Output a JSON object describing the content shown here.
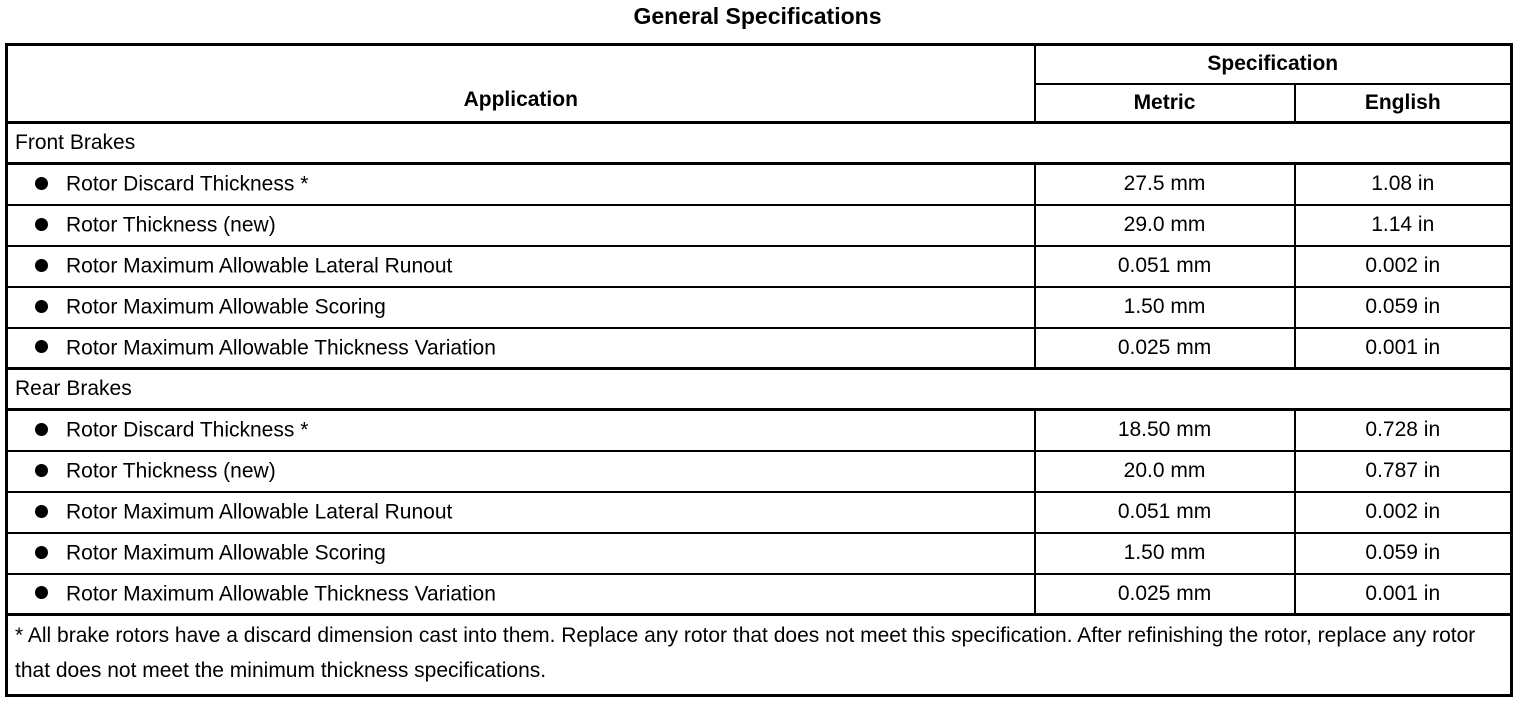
{
  "title": "General Specifications",
  "table": {
    "header": {
      "application": "Application",
      "specification": "Specification",
      "metric": "Metric",
      "english": "English"
    },
    "sections": [
      {
        "name": "Front Brakes",
        "rows": [
          {
            "label": "Rotor Discard Thickness *",
            "metric": "27.5 mm",
            "english": "1.08 in"
          },
          {
            "label": "Rotor Thickness (new)",
            "metric": "29.0 mm",
            "english": "1.14 in"
          },
          {
            "label": "Rotor Maximum Allowable Lateral Runout",
            "metric": "0.051 mm",
            "english": "0.002 in"
          },
          {
            "label": "Rotor Maximum Allowable Scoring",
            "metric": "1.50 mm",
            "english": "0.059 in"
          },
          {
            "label": "Rotor Maximum Allowable Thickness Variation",
            "metric": "0.025 mm",
            "english": "0.001 in"
          }
        ]
      },
      {
        "name": "Rear Brakes",
        "rows": [
          {
            "label": "Rotor Discard Thickness *",
            "metric": "18.50 mm",
            "english": "0.728 in"
          },
          {
            "label": "Rotor Thickness (new)",
            "metric": "20.0 mm",
            "english": "0.787 in"
          },
          {
            "label": "Rotor Maximum Allowable Lateral Runout",
            "metric": "0.051 mm",
            "english": "0.002 in"
          },
          {
            "label": "Rotor Maximum Allowable Scoring",
            "metric": "1.50 mm",
            "english": "0.059 in"
          },
          {
            "label": "Rotor Maximum Allowable Thickness Variation",
            "metric": "0.025 mm",
            "english": "0.001 in"
          }
        ]
      }
    ],
    "footnote": "* All brake rotors have a discard dimension cast into them. Replace any rotor that does not meet this specification. After refinishing the rotor, replace any rotor that does not meet the minimum thickness specifications."
  },
  "icons": {
    "bullet": "filled-circle"
  },
  "colors": {
    "text": "#000000",
    "background": "#ffffff",
    "border": "#000000"
  }
}
